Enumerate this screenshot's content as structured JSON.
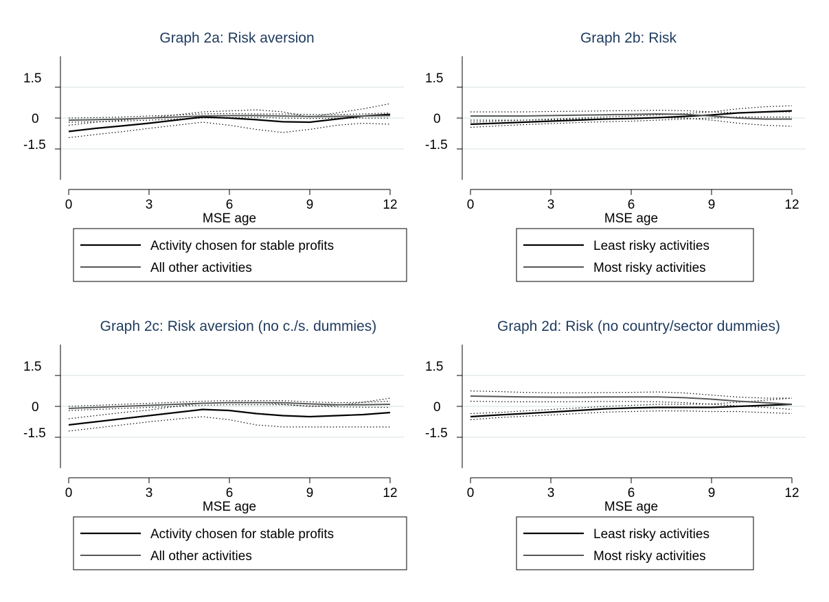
{
  "chart_data": [
    {
      "type": "line",
      "title": "Graph 2a: Risk aversion",
      "xlabel": "MSE age",
      "ylabel": "",
      "xlim": [
        0,
        12
      ],
      "ylim": [
        -3,
        3
      ],
      "xticks": [
        "0",
        "3",
        "6",
        "9",
        "12"
      ],
      "yticks": [
        "1.5",
        "0",
        "-1.5"
      ],
      "grid": true,
      "legend_position": "bottom",
      "series": [
        {
          "name": "Activity chosen for stable profits",
          "color": "#000000",
          "x": [
            0,
            1,
            2,
            3,
            4,
            5,
            6,
            7,
            8,
            9,
            10,
            11,
            12
          ],
          "y": [
            -0.65,
            -0.5,
            -0.38,
            -0.25,
            -0.1,
            0.05,
            0.0,
            -0.08,
            -0.18,
            -0.2,
            -0.05,
            0.1,
            0.18
          ],
          "ci_upper": [
            -0.35,
            -0.2,
            -0.1,
            0.0,
            0.15,
            0.3,
            0.35,
            0.4,
            0.3,
            0.05,
            0.25,
            0.45,
            0.7
          ],
          "ci_lower": [
            -0.95,
            -0.8,
            -0.66,
            -0.5,
            -0.35,
            -0.2,
            -0.35,
            -0.55,
            -0.7,
            -0.55,
            -0.35,
            -0.25,
            -0.3
          ]
        },
        {
          "name": "All other activities",
          "color": "#555555",
          "x": [
            0,
            1,
            2,
            3,
            4,
            5,
            6,
            7,
            8,
            9,
            10,
            11,
            12
          ],
          "y": [
            -0.1,
            -0.08,
            -0.05,
            0.0,
            0.05,
            0.1,
            0.12,
            0.12,
            0.1,
            0.08,
            0.08,
            0.1,
            0.12
          ],
          "ci_upper": [
            0.0,
            0.02,
            0.05,
            0.1,
            0.15,
            0.2,
            0.22,
            0.2,
            0.2,
            0.18,
            0.17,
            0.2,
            0.25
          ],
          "ci_lower": [
            -0.2,
            -0.18,
            -0.15,
            -0.1,
            -0.05,
            0.0,
            0.02,
            0.04,
            0.0,
            -0.02,
            -0.01,
            0.0,
            0.0
          ]
        }
      ]
    },
    {
      "type": "line",
      "title": "Graph 2b: Risk",
      "xlabel": "MSE age",
      "ylabel": "",
      "xlim": [
        0,
        12
      ],
      "ylim": [
        -3,
        3
      ],
      "xticks": [
        "0",
        "3",
        "6",
        "9",
        "12"
      ],
      "yticks": [
        "1.5",
        "0",
        "-1.5"
      ],
      "grid": true,
      "legend_position": "bottom",
      "series": [
        {
          "name": "Least risky activities",
          "color": "#000000",
          "x": [
            0,
            1,
            2,
            3,
            4,
            5,
            6,
            7,
            8,
            9,
            10,
            11,
            12
          ],
          "y": [
            -0.3,
            -0.25,
            -0.2,
            -0.15,
            -0.1,
            -0.05,
            -0.02,
            0.02,
            0.08,
            0.15,
            0.25,
            0.3,
            0.35
          ],
          "ci_upper": [
            -0.2,
            -0.15,
            -0.1,
            -0.05,
            0.0,
            0.05,
            0.1,
            0.15,
            0.22,
            0.3,
            0.45,
            0.55,
            0.6
          ],
          "ci_lower": [
            -0.45,
            -0.38,
            -0.32,
            -0.27,
            -0.22,
            -0.18,
            -0.15,
            -0.1,
            -0.05,
            0.0,
            0.05,
            0.05,
            0.05
          ]
        },
        {
          "name": "Most risky activities",
          "color": "#555555",
          "x": [
            0,
            1,
            2,
            3,
            4,
            5,
            6,
            7,
            8,
            9,
            10,
            11,
            12
          ],
          "y": [
            0.1,
            0.1,
            0.1,
            0.12,
            0.14,
            0.16,
            0.18,
            0.2,
            0.18,
            0.1,
            0.0,
            -0.05,
            -0.05
          ],
          "ci_upper": [
            0.3,
            0.3,
            0.3,
            0.32,
            0.33,
            0.35,
            0.36,
            0.38,
            0.36,
            0.3,
            0.25,
            0.3,
            0.3
          ],
          "ci_lower": [
            -0.1,
            -0.1,
            -0.1,
            -0.08,
            -0.05,
            -0.03,
            0.0,
            0.02,
            0.0,
            -0.1,
            -0.25,
            -0.35,
            -0.4
          ]
        }
      ]
    },
    {
      "type": "line",
      "title": "Graph 2c: Risk aversion (no c./s. dummies)",
      "xlabel": "MSE age",
      "ylabel": "",
      "xlim": [
        0,
        12
      ],
      "ylim": [
        -3,
        3
      ],
      "xticks": [
        "0",
        "3",
        "6",
        "9",
        "12"
      ],
      "yticks": [
        "1.5",
        "0",
        "-1.5"
      ],
      "grid": true,
      "legend_position": "bottom",
      "series": [
        {
          "name": "Activity chosen for stable profits",
          "color": "#000000",
          "x": [
            0,
            1,
            2,
            3,
            4,
            5,
            6,
            7,
            8,
            9,
            10,
            11,
            12
          ],
          "y": [
            -0.9,
            -0.75,
            -0.6,
            -0.45,
            -0.3,
            -0.15,
            -0.2,
            -0.35,
            -0.45,
            -0.5,
            -0.45,
            -0.4,
            -0.3
          ],
          "ci_upper": [
            -0.6,
            -0.45,
            -0.3,
            -0.18,
            0.0,
            0.15,
            0.2,
            0.2,
            0.1,
            0.0,
            0.05,
            0.2,
            0.4
          ],
          "ci_lower": [
            -1.2,
            -1.05,
            -0.9,
            -0.75,
            -0.62,
            -0.5,
            -0.65,
            -0.9,
            -1.0,
            -1.0,
            -1.0,
            -1.0,
            -1.0
          ]
        },
        {
          "name": "All other activities",
          "color": "#555555",
          "x": [
            0,
            1,
            2,
            3,
            4,
            5,
            6,
            7,
            8,
            9,
            10,
            11,
            12
          ],
          "y": [
            -0.1,
            -0.05,
            0.0,
            0.05,
            0.1,
            0.15,
            0.18,
            0.18,
            0.18,
            0.12,
            0.08,
            0.08,
            0.1
          ],
          "ci_upper": [
            0.0,
            0.05,
            0.1,
            0.15,
            0.2,
            0.25,
            0.28,
            0.28,
            0.28,
            0.22,
            0.18,
            0.2,
            0.25
          ],
          "ci_lower": [
            -0.2,
            -0.15,
            -0.1,
            -0.05,
            0.0,
            0.05,
            0.08,
            0.08,
            0.08,
            0.02,
            -0.02,
            -0.04,
            -0.05
          ]
        }
      ]
    },
    {
      "type": "line",
      "title": "Graph 2d: Risk (no country/sector dummies)",
      "xlabel": "MSE age",
      "ylabel": "",
      "xlim": [
        0,
        12
      ],
      "ylim": [
        -3,
        3
      ],
      "xticks": [
        "0",
        "3",
        "6",
        "9",
        "12"
      ],
      "yticks": [
        "1.5",
        "0",
        "-1.5"
      ],
      "grid": true,
      "legend_position": "bottom",
      "series": [
        {
          "name": "Least risky activities",
          "color": "#000000",
          "x": [
            0,
            1,
            2,
            3,
            4,
            5,
            6,
            7,
            8,
            9,
            10,
            11,
            12
          ],
          "y": [
            -0.5,
            -0.42,
            -0.35,
            -0.28,
            -0.2,
            -0.12,
            -0.08,
            -0.05,
            -0.05,
            -0.05,
            0.0,
            0.05,
            0.1
          ],
          "ci_upper": [
            -0.35,
            -0.3,
            -0.22,
            -0.15,
            -0.08,
            0.0,
            0.05,
            0.1,
            0.1,
            0.12,
            0.2,
            0.3,
            0.4
          ],
          "ci_lower": [
            -0.65,
            -0.55,
            -0.48,
            -0.42,
            -0.35,
            -0.28,
            -0.25,
            -0.22,
            -0.22,
            -0.25,
            -0.25,
            -0.3,
            -0.35
          ]
        },
        {
          "name": "Most risky activities",
          "color": "#555555",
          "x": [
            0,
            1,
            2,
            3,
            4,
            5,
            6,
            7,
            8,
            9,
            10,
            11,
            12
          ],
          "y": [
            0.5,
            0.48,
            0.46,
            0.45,
            0.45,
            0.46,
            0.46,
            0.46,
            0.42,
            0.35,
            0.25,
            0.18,
            0.1
          ],
          "ci_upper": [
            0.75,
            0.72,
            0.68,
            0.66,
            0.66,
            0.67,
            0.68,
            0.7,
            0.65,
            0.55,
            0.45,
            0.4,
            0.4
          ],
          "ci_lower": [
            0.25,
            0.23,
            0.22,
            0.22,
            0.23,
            0.24,
            0.24,
            0.22,
            0.18,
            0.1,
            0.02,
            -0.05,
            -0.15
          ]
        }
      ]
    }
  ]
}
